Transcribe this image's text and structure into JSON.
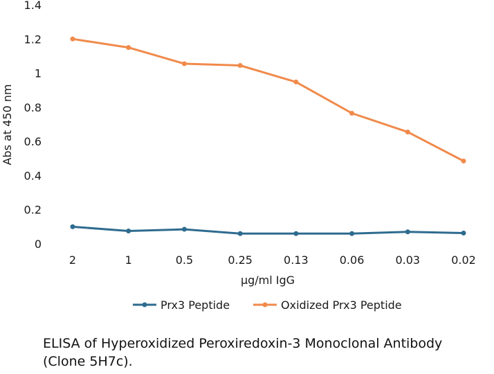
{
  "chart_data": {
    "type": "line",
    "title": "",
    "xlabel": "µg/ml IgG",
    "ylabel": "Abs at 450 nm",
    "categories": [
      "2",
      "1",
      "0.5",
      "0.25",
      "0.13",
      "0.06",
      "0.03",
      "0.02"
    ],
    "ylim": [
      0,
      1.4
    ],
    "yticks": [
      0,
      0.2,
      0.4,
      0.6,
      0.8,
      1,
      1.2,
      1.4
    ],
    "ytick_labels": [
      "0",
      "0.2",
      "0.4",
      "0.6",
      "0.8",
      "1",
      "1.2",
      "1.4"
    ],
    "grid": false,
    "legend_position": "bottom",
    "series": [
      {
        "name": "Prx3 Peptide",
        "color": "#2e6b8f",
        "values": [
          0.1,
          0.075,
          0.085,
          0.06,
          0.06,
          0.06,
          0.07,
          0.063
        ]
      },
      {
        "name": "Oxidized Prx3 Peptide",
        "color": "#f08a4b",
        "values": [
          1.2,
          1.15,
          1.055,
          1.045,
          0.948,
          0.765,
          0.655,
          0.485
        ]
      }
    ]
  },
  "caption": "ELISA of  Hyperoxidized Peroxiredoxin-3 Monoclonal Antibody (Clone 5H7c)."
}
